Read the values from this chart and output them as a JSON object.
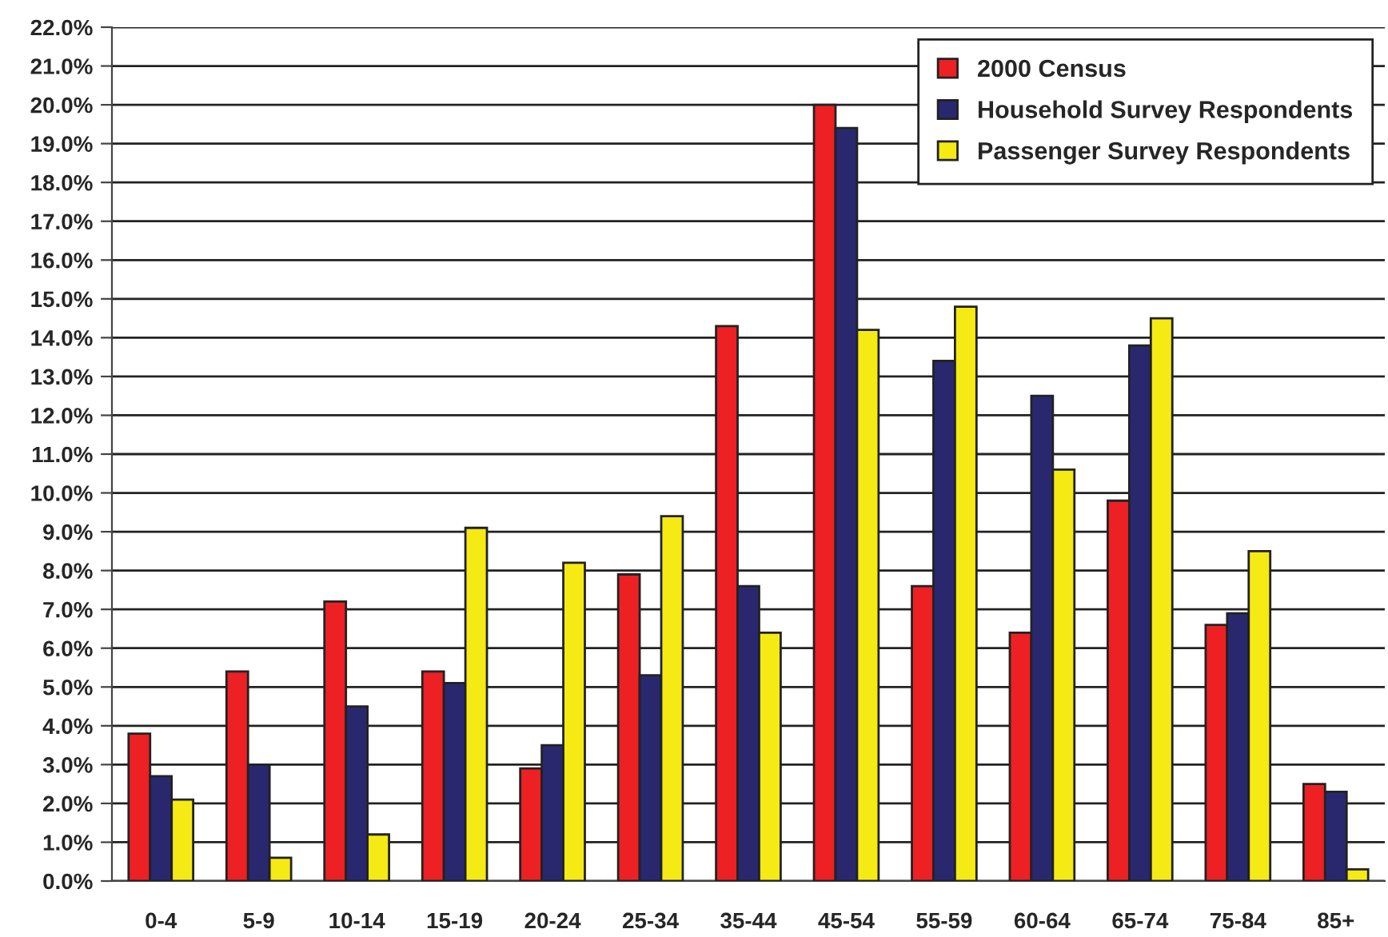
{
  "chart_data": {
    "type": "bar",
    "categories": [
      "0-4",
      "5-9",
      "10-14",
      "15-19",
      "20-24",
      "25-34",
      "35-44",
      "45-54",
      "55-59",
      "60-64",
      "65-74",
      "75-84",
      "85+"
    ],
    "series": [
      {
        "name": "2000 Census",
        "color": "#ed2024",
        "values": [
          3.8,
          5.4,
          7.2,
          5.4,
          2.9,
          7.9,
          14.3,
          20.0,
          7.6,
          6.4,
          9.8,
          6.6,
          2.5
        ]
      },
      {
        "name": "Household Survey Respondents",
        "color": "#29286f",
        "values": [
          2.7,
          3.0,
          4.5,
          5.1,
          3.5,
          5.3,
          7.6,
          19.4,
          13.4,
          12.5,
          13.8,
          6.9,
          2.3
        ]
      },
      {
        "name": "Passenger Survey Respondents",
        "color": "#f5ea14",
        "values": [
          2.1,
          0.6,
          1.2,
          9.1,
          8.2,
          9.4,
          6.4,
          14.2,
          14.8,
          10.6,
          14.5,
          8.5,
          0.3
        ]
      }
    ],
    "ylim": [
      0,
      22
    ],
    "yticks": [
      {
        "value": 0,
        "label": "0.0%"
      },
      {
        "value": 1,
        "label": "1.0%"
      },
      {
        "value": 2,
        "label": "2.0%"
      },
      {
        "value": 3,
        "label": "3.0%"
      },
      {
        "value": 4,
        "label": "4.0%"
      },
      {
        "value": 5,
        "label": "5.0%"
      },
      {
        "value": 6,
        "label": "6.0%"
      },
      {
        "value": 7,
        "label": "7.0%"
      },
      {
        "value": 8,
        "label": "8.0%"
      },
      {
        "value": 9,
        "label": "9.0%"
      },
      {
        "value": 10,
        "label": "10.0%"
      },
      {
        "value": 11,
        "label": "11.0%"
      },
      {
        "value": 12,
        "label": "12.0%"
      },
      {
        "value": 13,
        "label": "13.0%"
      },
      {
        "value": 14,
        "label": "14.0%"
      },
      {
        "value": 15,
        "label": "15.0%"
      },
      {
        "value": 16,
        "label": "16.0%"
      },
      {
        "value": 17,
        "label": "17.0%"
      },
      {
        "value": 18,
        "label": "18.0%"
      },
      {
        "value": 19,
        "label": "19.0%"
      },
      {
        "value": 20,
        "label": "20.0%"
      },
      {
        "value": 21,
        "label": "21.0%"
      },
      {
        "value": 22,
        "label": "22.0%"
      }
    ],
    "grid": "y",
    "legend": "top right"
  }
}
